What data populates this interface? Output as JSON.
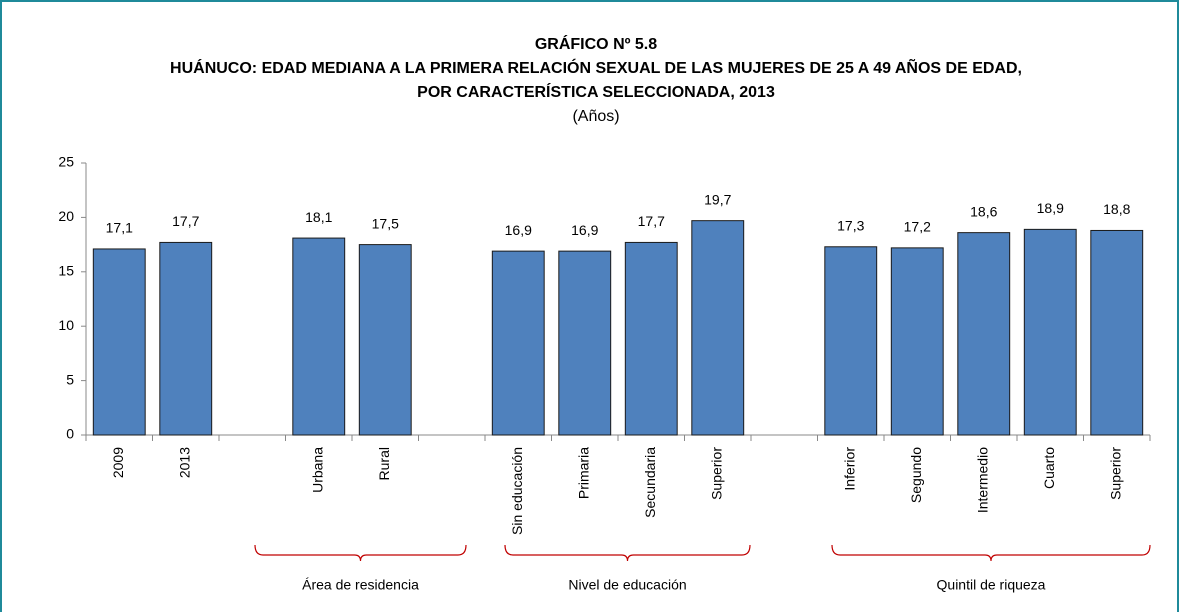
{
  "chart_data": {
    "type": "bar",
    "title": "GRÁFICO Nº 5.8",
    "title_lines": [
      "HUÁNUCO: EDAD MEDIANA A LA PRIMERA RELACIÓN SEXUAL DE LAS MUJERES DE 25 A 49 AÑOS DE EDAD,",
      "POR CARACTERÍSTICA SELECCIONADA, 2013"
    ],
    "subtitle": "(Años)",
    "categories": [
      "2009",
      "2013",
      null,
      "Urbana",
      "Rural",
      null,
      "Sin educación",
      "Primaria",
      "Secundaria",
      "Superior",
      null,
      "Inferior",
      "Segundo",
      "Intermedio",
      "Cuarto",
      "Superior"
    ],
    "values": [
      17.1,
      17.7,
      null,
      18.1,
      17.5,
      null,
      16.9,
      16.9,
      17.7,
      19.7,
      null,
      17.3,
      17.2,
      18.6,
      18.9,
      18.8
    ],
    "value_labels": [
      "17,1",
      "17,7",
      null,
      "18,1",
      "17,5",
      null,
      "16,9",
      "16,9",
      "17,7",
      "19,7",
      null,
      "17,3",
      "17,2",
      "18,6",
      "18,9",
      "18,8"
    ],
    "groups": [
      "Área de residencia",
      "Nivel de educación",
      "Quintil de riqueza"
    ],
    "color": "#4f81bd",
    "ylim": [
      0,
      25
    ],
    "yticks": [
      0,
      5,
      10,
      15,
      20,
      25
    ]
  }
}
